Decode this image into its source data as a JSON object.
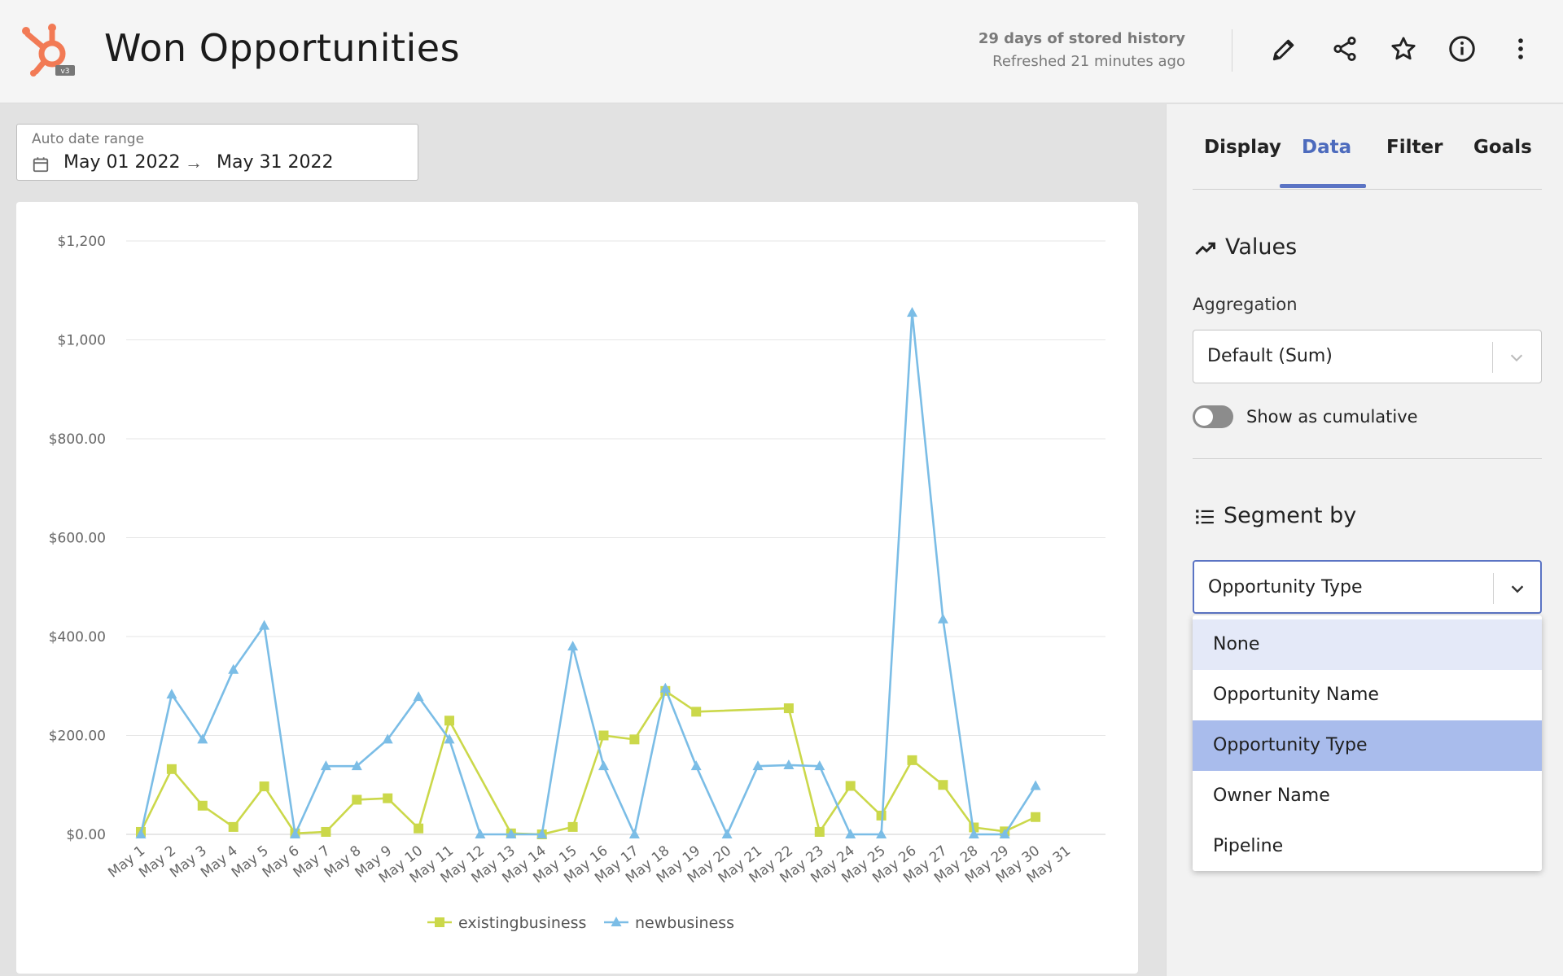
{
  "header": {
    "title": "Won Opportunities",
    "history_line1": "29 days of stored history",
    "history_line2": "Refreshed 21 minutes ago",
    "logo_badge": "v3",
    "icons": [
      "edit-icon",
      "share-icon",
      "star-icon",
      "info-icon",
      "more-icon"
    ]
  },
  "date_range": {
    "label": "Auto date range",
    "start": "May 01 2022",
    "arrow": "→",
    "end": "May 31 2022"
  },
  "panel": {
    "tabs": [
      {
        "label": "Display",
        "active": false
      },
      {
        "label": "Data",
        "active": true
      },
      {
        "label": "Filter",
        "active": false
      },
      {
        "label": "Goals",
        "active": false
      }
    ],
    "values_title": "Values",
    "aggregation_label": "Aggregation",
    "aggregation_value": "Default (Sum)",
    "cumulative_label": "Show as cumulative",
    "cumulative_on": false,
    "segment_title": "Segment by",
    "segment_value": "Opportunity Type",
    "segment_options": [
      "None",
      "Opportunity Name",
      "Opportunity Type",
      "Owner Name",
      "Pipeline"
    ],
    "hovered_option": "None",
    "selected_option": "Opportunity Type"
  },
  "colors": {
    "accent": "#5b74c4",
    "existing": "#cbd84a",
    "newbiz": "#7bbde6",
    "logo": "#f27a55"
  },
  "chart_data": {
    "type": "line",
    "x": [
      "May 1",
      "May 2",
      "May 3",
      "May 4",
      "May 5",
      "May 6",
      "May 7",
      "May 8",
      "May 9",
      "May 10",
      "May 11",
      "May 12",
      "May 13",
      "May 14",
      "May 15",
      "May 16",
      "May 17",
      "May 18",
      "May 19",
      "May 20",
      "May 21",
      "May 22",
      "May 23",
      "May 24",
      "May 25",
      "May 26",
      "May 27",
      "May 28",
      "May 29",
      "May 30",
      "May 31"
    ],
    "yticks": [
      "$0.00",
      "$200.00",
      "$400.00",
      "$600.00",
      "$800.00",
      "$1,000",
      "$1,200"
    ],
    "ylim": [
      0,
      1200
    ],
    "series": [
      {
        "name": "existingbusiness",
        "marker": "square",
        "values": [
          5,
          132,
          58,
          15,
          97,
          2,
          5,
          70,
          73,
          12,
          230,
          null,
          2,
          0,
          15,
          200,
          192,
          290,
          248,
          null,
          null,
          255,
          5,
          98,
          38,
          150,
          100,
          14,
          6,
          35,
          null
        ]
      },
      {
        "name": "newbusiness",
        "marker": "triangle",
        "values": [
          0,
          283,
          192,
          333,
          422,
          0,
          138,
          138,
          192,
          278,
          192,
          0,
          0,
          0,
          380,
          138,
          0,
          295,
          138,
          0,
          138,
          140,
          138,
          0,
          0,
          1055,
          435,
          0,
          0,
          98,
          null
        ]
      }
    ],
    "legend": "bottom-center",
    "grid": true
  }
}
